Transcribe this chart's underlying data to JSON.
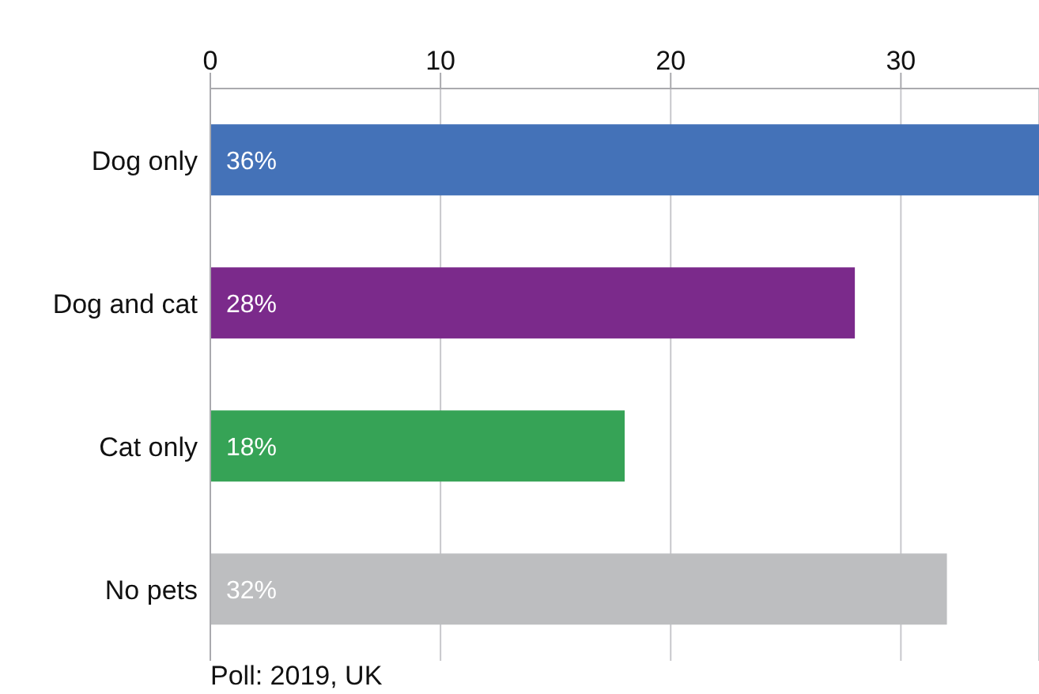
{
  "chart_data": {
    "type": "bar",
    "orientation": "horizontal",
    "categories": [
      "Dog only",
      "Dog and cat",
      "Cat only",
      "No pets"
    ],
    "values": [
      36,
      28,
      18,
      32
    ],
    "colors": [
      "#4472b8",
      "#7b2a8b",
      "#36a356",
      "#bdbec0"
    ],
    "value_labels": [
      "36%",
      "28%",
      "18%",
      "32%"
    ],
    "xlim": [
      0,
      36
    ],
    "xticks": [
      0,
      10,
      20,
      30
    ],
    "grid": "x",
    "annotations": [
      "Poll: 2019, UK"
    ]
  }
}
